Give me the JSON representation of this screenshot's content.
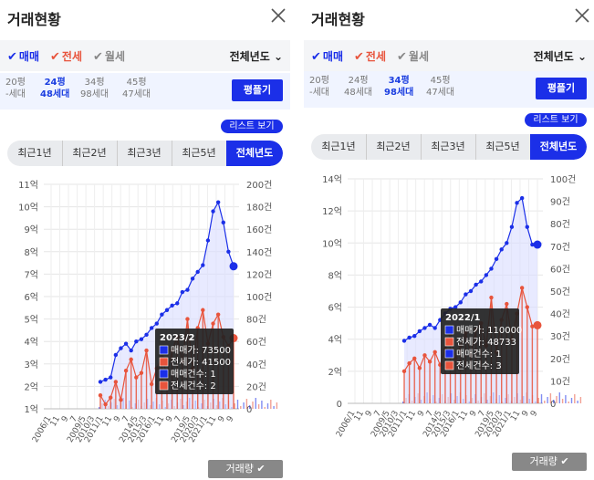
{
  "left": {
    "title": "거래현황",
    "trade_types": [
      {
        "label": "매매",
        "color": "#1b2fe8"
      },
      {
        "label": "전세",
        "color": "#e8543c"
      },
      {
        "label": "월세",
        "color": "#888888"
      }
    ],
    "year_select": "전체년도",
    "areas": [
      {
        "top": "20평",
        "bottom": "-세대",
        "selected": false
      },
      {
        "top": "24평",
        "bottom": "48세대",
        "selected": true
      },
      {
        "top": "34평",
        "bottom": "98세대",
        "selected": false
      },
      {
        "top": "45평",
        "bottom": "47세대",
        "selected": false
      }
    ],
    "pyeong_button": "평플기",
    "list_button": "리스트 보기",
    "periods": [
      "최근1년",
      "최근2년",
      "최근3년",
      "최근5년",
      "전체년도"
    ],
    "volume_button": "거래량",
    "tooltip": {
      "date": "2023/2",
      "rows": [
        "매매가: 73500",
        "전세가: 41500",
        "매매건수: 1",
        "전세건수: 2"
      ]
    },
    "chart_data": {
      "type": "line",
      "y_left_ticks": [
        "11억",
        "10억",
        "9억",
        "8억",
        "7억",
        "6억",
        "5억",
        "4억",
        "3억",
        "2억",
        "1억"
      ],
      "y_left_range": [
        1,
        11
      ],
      "y_right_ticks": [
        "200건",
        "180건",
        "160건",
        "140건",
        "120건",
        "100건",
        "80건",
        "60건",
        "40건",
        "20건",
        "0"
      ],
      "y_right_range": [
        0,
        200
      ],
      "x_ticks": [
        "2006/1",
        "11",
        "9",
        "7",
        "2009/5",
        "2010/3",
        "2011/1",
        "11",
        "9",
        "7",
        "2014/5",
        "2015/3",
        "2016/1",
        "11",
        "9",
        "7",
        "2019/5",
        "2020/3",
        "2021/1",
        "11",
        "9",
        "9"
      ],
      "series": [
        {
          "color": "#1b2fe8",
          "values": [
            2.2,
            2.3,
            2.4,
            3.4,
            3.7,
            3.9,
            3.6,
            4.0,
            4.1,
            4.3,
            4.6,
            4.8,
            5.2,
            5.4,
            5.6,
            5.7,
            6.2,
            6.3,
            6.8,
            7.1,
            7.4,
            8.5,
            9.8,
            10.2,
            9.3,
            8.0,
            7.35
          ]
        },
        {
          "color": "#e8543c",
          "values": [
            1.6,
            1.2,
            1.5,
            2.2,
            1.4,
            2.7,
            3.2,
            2.4,
            2.6,
            3.6,
            2.1,
            2.8,
            3.3,
            2.5,
            3.6,
            4.2,
            3.1,
            5.0,
            2.8,
            4.6,
            5.4,
            3.9,
            4.8,
            5.2,
            4.2,
            3.8,
            4.15
          ]
        }
      ]
    }
  },
  "right": {
    "title": "거래현황",
    "trade_types": [
      {
        "label": "매매",
        "color": "#1b2fe8"
      },
      {
        "label": "전세",
        "color": "#e8543c"
      },
      {
        "label": "월세",
        "color": "#888888"
      }
    ],
    "year_select": "전체년도",
    "areas": [
      {
        "top": "20평",
        "bottom": "-세대",
        "selected": false
      },
      {
        "top": "24평",
        "bottom": "48세대",
        "selected": false
      },
      {
        "top": "34평",
        "bottom": "98세대",
        "selected": true
      },
      {
        "top": "45평",
        "bottom": "47세대",
        "selected": false
      }
    ],
    "pyeong_button": "평플기",
    "list_button": "리스트 보기",
    "periods": [
      "최근1년",
      "최근2년",
      "최근3년",
      "최근5년",
      "전체년도"
    ],
    "volume_button": "거래량",
    "tooltip": {
      "date": "2022/1",
      "rows": [
        "매매가: 110000",
        "전세가: 48733",
        "매매건수: 1",
        "전세건수: 3"
      ]
    },
    "chart_data": {
      "type": "line",
      "y_left_ticks": [
        "14억",
        "12억",
        "10억",
        "8억",
        "6억",
        "4억",
        "2억",
        "0"
      ],
      "y_left_range": [
        0,
        14
      ],
      "y_right_ticks": [
        "100건",
        "90건",
        "80건",
        "70건",
        "60건",
        "50건",
        "40건",
        "30건",
        "20건",
        "10건",
        "0"
      ],
      "y_right_range": [
        0,
        100
      ],
      "x_ticks": [
        "2006/1",
        "11",
        "9",
        "7",
        "2009/5",
        "2010/3",
        "2011/1",
        "11",
        "9",
        "7",
        "2014/5",
        "2015/3",
        "2016/1",
        "11",
        "9",
        "7",
        "2019/5",
        "2020/3",
        "2021/1",
        "11",
        "9",
        "9"
      ],
      "series": [
        {
          "color": "#1b2fe8",
          "values": [
            3.9,
            4.1,
            4.2,
            4.5,
            4.7,
            4.9,
            4.7,
            5.2,
            5.6,
            5.9,
            6.0,
            6.3,
            6.8,
            7.0,
            7.4,
            7.6,
            8.0,
            8.4,
            9.0,
            9.6,
            10.0,
            11.0,
            12.5,
            12.8,
            11.0,
            9.9,
            9.9
          ]
        },
        {
          "color": "#e8543c",
          "values": [
            2.0,
            2.5,
            2.8,
            2.2,
            3.0,
            2.6,
            3.2,
            2.4,
            3.4,
            4.3,
            2.8,
            3.6,
            4.4,
            3.0,
            4.6,
            5.0,
            3.6,
            6.6,
            3.2,
            5.2,
            6.2,
            4.0,
            5.6,
            7.2,
            6.0,
            4.8,
            4.87
          ]
        }
      ]
    }
  }
}
